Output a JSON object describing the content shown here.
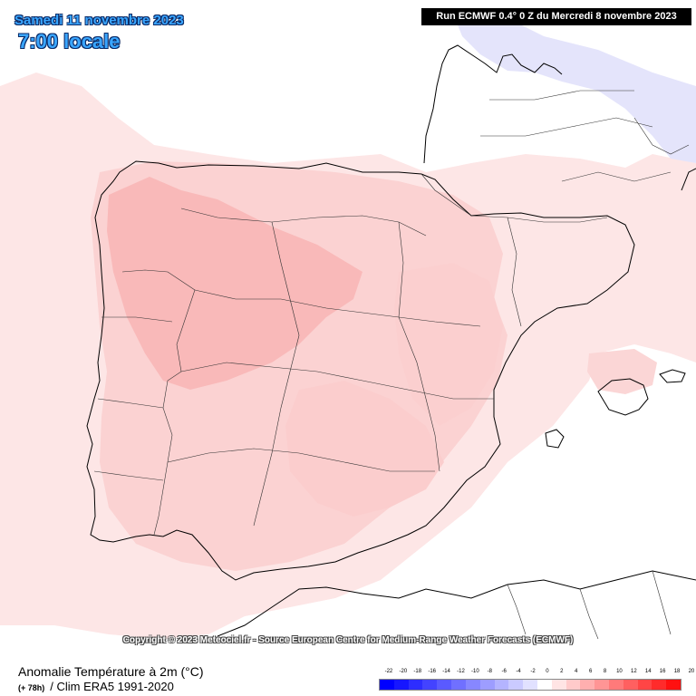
{
  "header": {
    "date": "Samedi 11 novembre 2023",
    "time": "7:00 locale",
    "run": "Run ECMWF 0.4° 0 Z du Mercredi 8 novembre 2023"
  },
  "copyright": "Copyright © 2023 Meteociel.fr - Source European Centre for Medium-Range Weather Forecasts (ECMWF)",
  "footer": {
    "title": "Anomalie Température à 2m (°C)",
    "lead": "(+ 78h)",
    "subtitle": "/ Clim ERA5 1991-2020"
  },
  "legend": {
    "labels": [
      "-22",
      "-20",
      "-18",
      "-16",
      "-14",
      "-12",
      "-10",
      "-8",
      "-6",
      "-4",
      "-2",
      "0",
      "2",
      "4",
      "6",
      "8",
      "10",
      "12",
      "14",
      "16",
      "18",
      "20"
    ],
    "colors": [
      "#0000ff",
      "#1616ff",
      "#2d2dff",
      "#4343ff",
      "#5a5aff",
      "#7070ff",
      "#8787ff",
      "#9d9dff",
      "#b4b4ff",
      "#cacaff",
      "#e1e1ff",
      "#ffffff",
      "#ffe4e4",
      "#ffcaca",
      "#ffafaf",
      "#ff9595",
      "#ff7a7a",
      "#ff6060",
      "#ff4545",
      "#ff2b2b",
      "#ff1010"
    ]
  },
  "colors": {
    "sea": "#ffffff",
    "anomaly_light_warm": "#fde4e4",
    "anomaly_warm": "#fbd0d0",
    "anomaly_warmer": "#f9b4b4",
    "anomaly_cold": "#e2e2fb",
    "coastline": "#000000"
  }
}
